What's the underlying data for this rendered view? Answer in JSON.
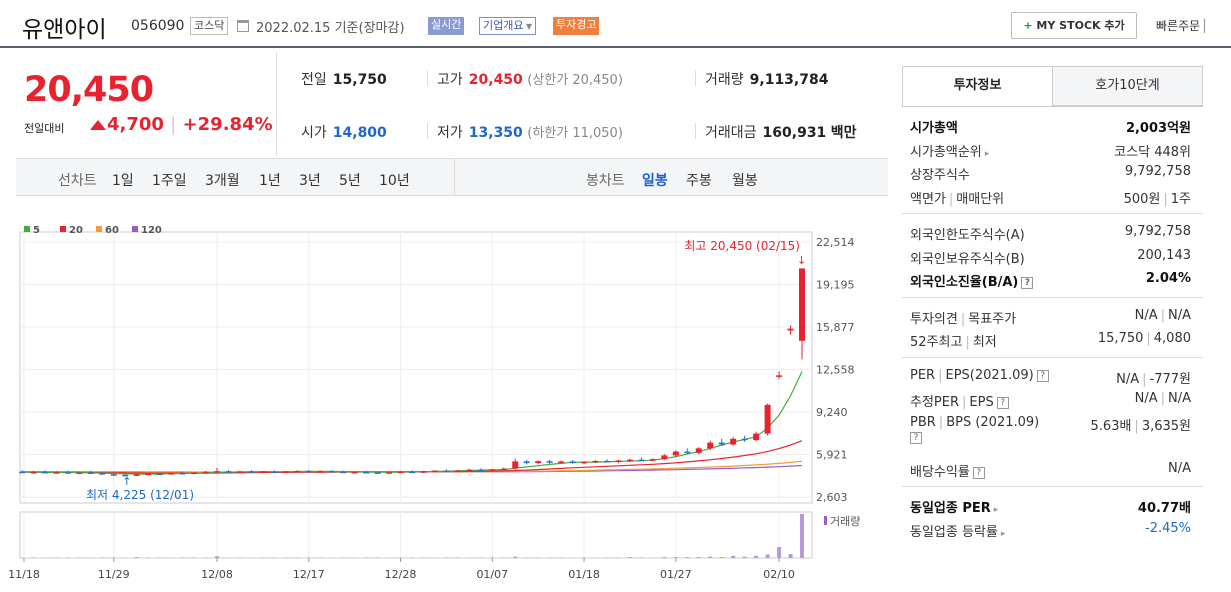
{
  "header": {
    "stock_name": "유앤아이",
    "stock_code": "056090",
    "market": "코스닥",
    "date": "2022.02.15",
    "basis": "기준(장마감)",
    "realtime_label": "실시간",
    "company_label": "기업개요",
    "warning_label": "투자경고",
    "mystock_label": "MY STOCK 추가",
    "quick_order_label": "빠른주문"
  },
  "price": {
    "current": "20,450",
    "vs_label": "전일대비",
    "change": "4,700",
    "change_pct": "+29.84%"
  },
  "stats": {
    "prev_label": "전일",
    "prev": "15,750",
    "high_label": "고가",
    "high": "20,450",
    "upper_limit": "(상한가 20,450)",
    "volume_label": "거래량",
    "volume": "9,113,784",
    "open_label": "시가",
    "open": "14,800",
    "low_label": "저가",
    "low": "13,350",
    "lower_limit": "(하한가 11,050)",
    "amount_label": "거래대금",
    "amount": "160,931",
    "amount_unit": "백만"
  },
  "periods": {
    "line_label": "선차트",
    "line": [
      "1일",
      "1주일",
      "3개월",
      "1년",
      "3년",
      "5년",
      "10년"
    ],
    "candle_label": "봉차트",
    "candle": [
      "일봉",
      "주봉",
      "월봉"
    ],
    "active": "일봉"
  },
  "chart_data": {
    "type": "candlestick",
    "legend": [
      "5",
      "20",
      "60",
      "120"
    ],
    "legend_colors": [
      "#3fae3f",
      "#e8232f",
      "#f39c35",
      "#9a5cc9"
    ],
    "up_color": "#e8232f",
    "down_color": "#2f6fd0",
    "y_ticks": [
      "22,514",
      "19,195",
      "15,877",
      "12,558",
      "9,240",
      "5,921",
      "2,603"
    ],
    "ylim": [
      2603,
      22514
    ],
    "x_ticks": [
      "11/18",
      "11/29",
      "12/08",
      "12/17",
      "12/28",
      "01/07",
      "01/18",
      "01/27",
      "02/10"
    ],
    "high_annotation": "최고 20,450 (02/15)",
    "low_annotation": "최저 4,225 (12/01)",
    "volume_label": "거래량",
    "candles": [
      {
        "o": 4580,
        "h": 4700,
        "l": 4450,
        "c": 4520
      },
      {
        "o": 4520,
        "h": 4650,
        "l": 4420,
        "c": 4560
      },
      {
        "o": 4560,
        "h": 4680,
        "l": 4470,
        "c": 4500
      },
      {
        "o": 4500,
        "h": 4620,
        "l": 4430,
        "c": 4540
      },
      {
        "o": 4540,
        "h": 4650,
        "l": 4440,
        "c": 4480
      },
      {
        "o": 4480,
        "h": 4600,
        "l": 4380,
        "c": 4520
      },
      {
        "o": 4520,
        "h": 4640,
        "l": 4440,
        "c": 4470
      },
      {
        "o": 4470,
        "h": 4560,
        "l": 4330,
        "c": 4380
      },
      {
        "o": 4380,
        "h": 4460,
        "l": 4250,
        "c": 4330
      },
      {
        "o": 4330,
        "h": 4420,
        "l": 4225,
        "c": 4300
      },
      {
        "o": 4300,
        "h": 4400,
        "l": 4230,
        "c": 4370
      },
      {
        "o": 4370,
        "h": 4470,
        "l": 4300,
        "c": 4430
      },
      {
        "o": 4430,
        "h": 4520,
        "l": 4340,
        "c": 4400
      },
      {
        "o": 4400,
        "h": 4520,
        "l": 4330,
        "c": 4480
      },
      {
        "o": 4480,
        "h": 4580,
        "l": 4400,
        "c": 4450
      },
      {
        "o": 4450,
        "h": 4560,
        "l": 4380,
        "c": 4520
      },
      {
        "o": 4520,
        "h": 4640,
        "l": 4450,
        "c": 4580
      },
      {
        "o": 4580,
        "h": 4880,
        "l": 4500,
        "c": 4620
      },
      {
        "o": 4620,
        "h": 4700,
        "l": 4500,
        "c": 4560
      },
      {
        "o": 4560,
        "h": 4650,
        "l": 4470,
        "c": 4600
      },
      {
        "o": 4600,
        "h": 4700,
        "l": 4520,
        "c": 4560
      },
      {
        "o": 4560,
        "h": 4640,
        "l": 4480,
        "c": 4590
      },
      {
        "o": 4590,
        "h": 4680,
        "l": 4500,
        "c": 4550
      },
      {
        "o": 4550,
        "h": 4640,
        "l": 4470,
        "c": 4600
      },
      {
        "o": 4600,
        "h": 4700,
        "l": 4520,
        "c": 4640
      },
      {
        "o": 4640,
        "h": 4720,
        "l": 4550,
        "c": 4590
      },
      {
        "o": 4590,
        "h": 4680,
        "l": 4510,
        "c": 4620
      },
      {
        "o": 4620,
        "h": 4700,
        "l": 4540,
        "c": 4580
      },
      {
        "o": 4580,
        "h": 4660,
        "l": 4490,
        "c": 4520
      },
      {
        "o": 4520,
        "h": 4610,
        "l": 4440,
        "c": 4560
      },
      {
        "o": 4560,
        "h": 4650,
        "l": 4470,
        "c": 4520
      },
      {
        "o": 4520,
        "h": 4600,
        "l": 4430,
        "c": 4480
      },
      {
        "o": 4480,
        "h": 4570,
        "l": 4400,
        "c": 4540
      },
      {
        "o": 4540,
        "h": 4640,
        "l": 4460,
        "c": 4590
      },
      {
        "o": 4590,
        "h": 4680,
        "l": 4510,
        "c": 4560
      },
      {
        "o": 4560,
        "h": 4650,
        "l": 4480,
        "c": 4610
      },
      {
        "o": 4610,
        "h": 4700,
        "l": 4530,
        "c": 4660
      },
      {
        "o": 4660,
        "h": 4760,
        "l": 4580,
        "c": 4620
      },
      {
        "o": 4620,
        "h": 4720,
        "l": 4540,
        "c": 4680
      },
      {
        "o": 4680,
        "h": 4800,
        "l": 4600,
        "c": 4740
      },
      {
        "o": 4740,
        "h": 4840,
        "l": 4650,
        "c": 4700
      },
      {
        "o": 4700,
        "h": 4820,
        "l": 4620,
        "c": 4760
      },
      {
        "o": 4760,
        "h": 4900,
        "l": 4680,
        "c": 4820
      },
      {
        "o": 4820,
        "h": 5600,
        "l": 4750,
        "c": 5380
      },
      {
        "o": 5380,
        "h": 5500,
        "l": 5150,
        "c": 5250
      },
      {
        "o": 5250,
        "h": 5450,
        "l": 5150,
        "c": 5400
      },
      {
        "o": 5400,
        "h": 5500,
        "l": 5200,
        "c": 5300
      },
      {
        "o": 5300,
        "h": 5450,
        "l": 5180,
        "c": 5380
      },
      {
        "o": 5380,
        "h": 5480,
        "l": 5200,
        "c": 5250
      },
      {
        "o": 5250,
        "h": 5400,
        "l": 5150,
        "c": 5350
      },
      {
        "o": 5350,
        "h": 5480,
        "l": 5250,
        "c": 5420
      },
      {
        "o": 5420,
        "h": 5550,
        "l": 5300,
        "c": 5350
      },
      {
        "o": 5350,
        "h": 5500,
        "l": 5250,
        "c": 5460
      },
      {
        "o": 5460,
        "h": 5600,
        "l": 5350,
        "c": 5520
      },
      {
        "o": 5520,
        "h": 5680,
        "l": 5400,
        "c": 5460
      },
      {
        "o": 5460,
        "h": 5620,
        "l": 5380,
        "c": 5560
      },
      {
        "o": 5560,
        "h": 5950,
        "l": 5480,
        "c": 5850
      },
      {
        "o": 5850,
        "h": 6250,
        "l": 5700,
        "c": 6150
      },
      {
        "o": 6150,
        "h": 6400,
        "l": 5950,
        "c": 6050
      },
      {
        "o": 6050,
        "h": 6500,
        "l": 5950,
        "c": 6400
      },
      {
        "o": 6400,
        "h": 7000,
        "l": 6250,
        "c": 6850
      },
      {
        "o": 6850,
        "h": 7150,
        "l": 6600,
        "c": 6700
      },
      {
        "o": 6700,
        "h": 7300,
        "l": 6600,
        "c": 7150
      },
      {
        "o": 7150,
        "h": 7400,
        "l": 6900,
        "c": 7050
      },
      {
        "o": 7050,
        "h": 7700,
        "l": 6950,
        "c": 7550
      },
      {
        "o": 7550,
        "h": 9900,
        "l": 7400,
        "c": 9800
      },
      {
        "o": 12000,
        "h": 12400,
        "l": 11800,
        "c": 12100
      },
      {
        "o": 15600,
        "h": 16000,
        "l": 15300,
        "c": 15750
      },
      {
        "o": 14800,
        "h": 20450,
        "l": 13350,
        "c": 20450
      }
    ],
    "ma": {
      "5": [
        4540,
        4535,
        4530,
        4525,
        4520,
        4510,
        4495,
        4470,
        4440,
        4410,
        4400,
        4395,
        4400,
        4420,
        4440,
        4460,
        4490,
        4520,
        4550,
        4570,
        4580,
        4585,
        4580,
        4580,
        4590,
        4600,
        4605,
        4600,
        4590,
        4570,
        4560,
        4550,
        4540,
        4545,
        4560,
        4580,
        4600,
        4620,
        4640,
        4670,
        4700,
        4720,
        4740,
        4850,
        4950,
        5050,
        5150,
        5230,
        5310,
        5330,
        5330,
        5340,
        5380,
        5400,
        5440,
        5480,
        5600,
        5750,
        5950,
        6150,
        6400,
        6650,
        6900,
        7100,
        7300,
        8000,
        9000,
        10500,
        12400
      ],
      "20": [
        4540,
        4538,
        4535,
        4532,
        4528,
        4522,
        4515,
        4505,
        4495,
        4485,
        4478,
        4472,
        4468,
        4466,
        4466,
        4468,
        4472,
        4478,
        4486,
        4495,
        4505,
        4515,
        4525,
        4535,
        4545,
        4552,
        4558,
        4562,
        4565,
        4566,
        4566,
        4565,
        4564,
        4564,
        4566,
        4570,
        4575,
        4582,
        4590,
        4600,
        4612,
        4625,
        4640,
        4670,
        4705,
        4745,
        4790,
        4835,
        4880,
        4920,
        4960,
        5000,
        5040,
        5080,
        5120,
        5160,
        5210,
        5270,
        5340,
        5420,
        5510,
        5610,
        5720,
        5840,
        5980,
        6160,
        6380,
        6660,
        7000
      ],
      "60": [
        4560,
        4558,
        4556,
        4554,
        4552,
        4550,
        4548,
        4546,
        4543,
        4540,
        4538,
        4536,
        4534,
        4532,
        4531,
        4530,
        4530,
        4530,
        4531,
        4532,
        4534,
        4536,
        4538,
        4540,
        4542,
        4544,
        4546,
        4548,
        4550,
        4552,
        4553,
        4554,
        4555,
        4556,
        4558,
        4560,
        4562,
        4565,
        4568,
        4572,
        4576,
        4580,
        4585,
        4594,
        4605,
        4618,
        4632,
        4647,
        4663,
        4680,
        4698,
        4716,
        4735,
        4755,
        4776,
        4798,
        4822,
        4848,
        4876,
        4906,
        4940,
        4977,
        5017,
        5060,
        5107,
        5162,
        5227,
        5302,
        5390
      ],
      "120": [
        4580,
        4578,
        4576,
        4574,
        4572,
        4570,
        4568,
        4566,
        4564,
        4562,
        4560,
        4558,
        4556,
        4554,
        4552,
        4551,
        4550,
        4549,
        4548,
        4548,
        4548,
        4548,
        4548,
        4548,
        4549,
        4550,
        4551,
        4552,
        4553,
        4554,
        4555,
        4556,
        4557,
        4558,
        4559,
        4560,
        4561,
        4562,
        4564,
        4566,
        4568,
        4570,
        4573,
        4577,
        4582,
        4588,
        4595,
        4603,
        4612,
        4622,
        4633,
        4645,
        4658,
        4672,
        4687,
        4703,
        4720,
        4738,
        4757,
        4777,
        4798,
        4821,
        4846,
        4873,
        4902,
        4935,
        4972,
        5014,
        5062
      ]
    },
    "volume": [
      1,
      1,
      1,
      1,
      1,
      1,
      1,
      1,
      1,
      1,
      2,
      1,
      1,
      1,
      1,
      1,
      1,
      4,
      1,
      1,
      1,
      1,
      1,
      1,
      1,
      1,
      1,
      1,
      1,
      1,
      1,
      1,
      1,
      1,
      1,
      1,
      1,
      1,
      1,
      1,
      1,
      1,
      1,
      3,
      1,
      1,
      1,
      1,
      1,
      1,
      1,
      1,
      1,
      2,
      1,
      1,
      2,
      2,
      2,
      2,
      3,
      2,
      5,
      3,
      5,
      8,
      25,
      9,
      100
    ]
  },
  "side": {
    "tab_active": "투자정보",
    "tab_other": "호가10단계",
    "g1": [
      {
        "k": "시가총액",
        "v": "2,003억원",
        "bold": true
      },
      {
        "k": "시가총액순위",
        "v": "코스닥 448위",
        "arrow": true
      },
      {
        "k": "상장주식수",
        "v": "9,792,758"
      },
      {
        "k": "액면가",
        "k2": "매매단위",
        "v": "500원",
        "v2": "1주"
      }
    ],
    "g2": [
      {
        "k": "외국인한도주식수(A)",
        "v": "9,792,758"
      },
      {
        "k": "외국인보유주식수(B)",
        "v": "200,143"
      },
      {
        "k": "외국인소진율(B/A)",
        "v": "2.04%",
        "bold": true,
        "q": true
      }
    ],
    "g3": [
      {
        "k": "투자의견",
        "k2": "목표주가",
        "v": "N/A",
        "v2": "N/A"
      },
      {
        "k": "52주최고",
        "k2": "최저",
        "v": "15,750",
        "v2": "4,080"
      }
    ],
    "g4": [
      {
        "k": "PER",
        "k2": "EPS(2021.09)",
        "v": "N/A",
        "v2": "-777원",
        "q": true
      },
      {
        "k": "추정PER",
        "k2": "EPS",
        "v": "N/A",
        "v2": "N/A",
        "q": true
      },
      {
        "k": "PBR",
        "k2": "BPS (2021.09)",
        "v": "5.63배",
        "v2": "3,635원",
        "q": true,
        "tall": true
      },
      {
        "k": "배당수익률",
        "v": "N/A",
        "q": true
      }
    ],
    "g5": [
      {
        "k": "동일업종 PER",
        "v": "40.77배",
        "bold": true,
        "arrow": true
      },
      {
        "k": "동일업종 등락률",
        "v": "-2.45%",
        "blue": true,
        "arrow": true
      }
    ]
  }
}
